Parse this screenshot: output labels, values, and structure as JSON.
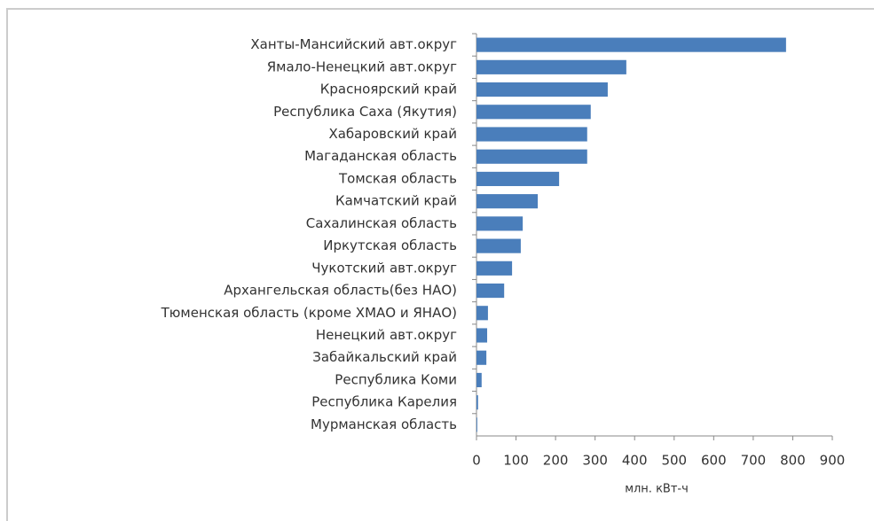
{
  "chart_data": {
    "type": "bar",
    "orientation": "horizontal",
    "x_label": "млн. кВт-ч",
    "categories": [
      "Ханты-Мансийский авт.округ",
      "Ямало-Ненецкий авт.округ",
      "Красноярский край",
      "Республика Саха (Якутия)",
      "Хабаровский край",
      "Магаданская область",
      "Томская область",
      "Камчатский край",
      "Сахалинская область",
      "Иркутская область",
      "Чукотский авт.округ",
      "Архангельская область(без НАО)",
      "Тюменская область (кроме ХМАО и ЯНАО)",
      "Ненецкий авт.округ",
      "Забайкальский край",
      "Республика Коми",
      "Республика Карелия",
      "Мурманская область"
    ],
    "values": [
      783,
      379,
      332,
      289,
      280,
      280,
      209,
      155,
      117,
      112,
      90,
      70,
      29,
      27,
      25,
      13,
      4,
      2
    ],
    "color": "#4a7ebb",
    "xlim": [
      0,
      900
    ],
    "xticks": [
      0,
      100,
      200,
      300,
      400,
      500,
      600,
      700,
      800,
      900
    ],
    "grid": false
  }
}
